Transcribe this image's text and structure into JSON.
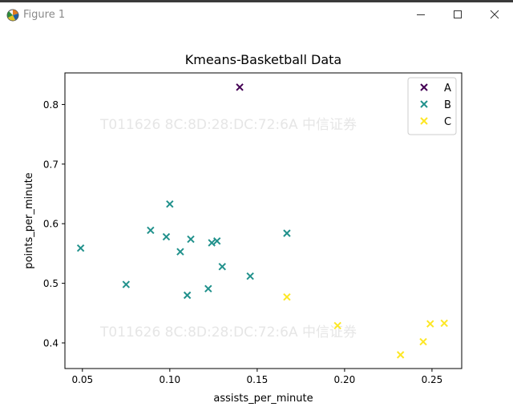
{
  "window": {
    "title": "Figure 1",
    "icons": {
      "app": "matplotlib-figure-icon",
      "minimize": "minimize-icon",
      "maximize": "maximize-icon",
      "close": "close-icon"
    }
  },
  "watermark": {
    "text": "T011626  8C:8D:28:DC:72:6A  中信证券",
    "color": "#e6e6e6"
  },
  "chart_data": {
    "type": "scatter",
    "title": "Kmeans-Basketball Data",
    "xlabel": "assists_per_minute",
    "ylabel": "points_per_minute",
    "xlim": [
      0.04,
      0.267
    ],
    "ylim": [
      0.357,
      0.853
    ],
    "xticks": [
      0.05,
      0.1,
      0.15,
      0.2,
      0.25
    ],
    "xtick_labels": [
      "0.05",
      "0.10",
      "0.15",
      "0.20",
      "0.25"
    ],
    "yticks": [
      0.4,
      0.5,
      0.6,
      0.7,
      0.8
    ],
    "ytick_labels": [
      "0.4",
      "0.5",
      "0.6",
      "0.7",
      "0.8"
    ],
    "marker": "x",
    "grid": false,
    "legend_position": "top-right",
    "series": [
      {
        "name": "A",
        "color": "#440154",
        "points": [
          [
            0.14,
            0.829
          ]
        ]
      },
      {
        "name": "B",
        "color": "#21918c",
        "points": [
          [
            0.049,
            0.559
          ],
          [
            0.075,
            0.498
          ],
          [
            0.089,
            0.589
          ],
          [
            0.098,
            0.578
          ],
          [
            0.1,
            0.633
          ],
          [
            0.106,
            0.553
          ],
          [
            0.11,
            0.48
          ],
          [
            0.112,
            0.574
          ],
          [
            0.122,
            0.491
          ],
          [
            0.124,
            0.568
          ],
          [
            0.127,
            0.571
          ],
          [
            0.13,
            0.528
          ],
          [
            0.146,
            0.512
          ],
          [
            0.167,
            0.584
          ]
        ]
      },
      {
        "name": "C",
        "color": "#fde725",
        "points": [
          [
            0.167,
            0.477
          ],
          [
            0.196,
            0.429
          ],
          [
            0.232,
            0.38
          ],
          [
            0.245,
            0.402
          ],
          [
            0.249,
            0.432
          ],
          [
            0.257,
            0.433
          ]
        ]
      }
    ]
  }
}
